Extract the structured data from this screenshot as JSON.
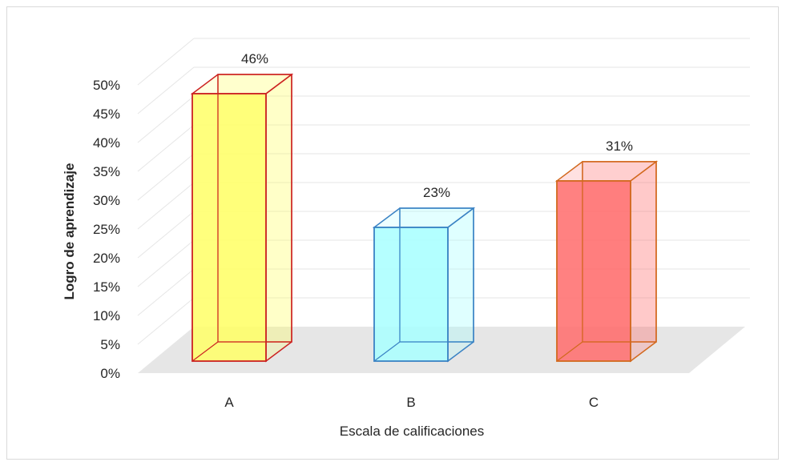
{
  "chart_data": {
    "type": "bar",
    "categories": [
      "A",
      "B",
      "C"
    ],
    "values": [
      46,
      23,
      31
    ],
    "value_labels": [
      "46%",
      "23%",
      "31%"
    ],
    "xlabel": "Escala de calificaciones",
    "ylabel": "Logro de aprendizaje",
    "ylim": [
      0,
      50
    ],
    "ytick_step": 5,
    "ytick_labels": [
      "0%",
      "5%",
      "10%",
      "15%",
      "20%",
      "25%",
      "30%",
      "35%",
      "40%",
      "45%",
      "50%"
    ],
    "grid": true,
    "legend": "none",
    "style": "3d-column",
    "colors": {
      "A": {
        "fill": "#ffff66",
        "stroke": "#cc2222"
      },
      "B": {
        "fill": "#a8ffff",
        "stroke": "#3a82c4"
      },
      "C": {
        "fill": "#ff6b6b",
        "stroke": "#d2691e"
      }
    }
  }
}
